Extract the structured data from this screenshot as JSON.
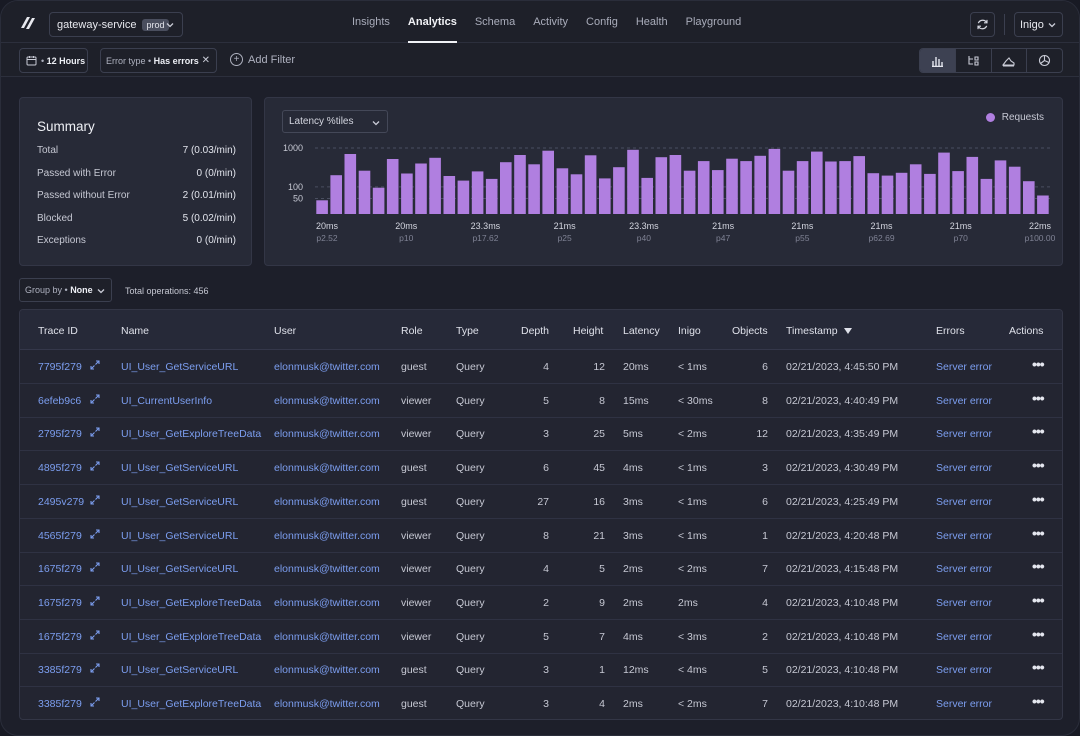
{
  "header": {
    "service_name": "gateway-service",
    "env_badge": "prod",
    "tabs": [
      {
        "label": "Insights"
      },
      {
        "label": "Analytics"
      },
      {
        "label": "Schema"
      },
      {
        "label": "Activity"
      },
      {
        "label": "Config"
      },
      {
        "label": "Health"
      },
      {
        "label": "Playground"
      }
    ],
    "active_tab": "Analytics",
    "org": "Inigo"
  },
  "filters": {
    "time_range": "12 Hours",
    "error_type_label": "Error type",
    "error_type_value": "Has errors",
    "add_filter": "Add Filter"
  },
  "summary": {
    "title": "Summary",
    "rows": [
      {
        "label": "Total",
        "value": "7 (0.03/min)"
      },
      {
        "label": "Passed with Error",
        "value": "0 (0/min)"
      },
      {
        "label": "Passed without Error",
        "value": "2 (0.01/min)"
      },
      {
        "label": "Blocked",
        "value": "5 (0.02/min)"
      },
      {
        "label": "Exceptions",
        "value": "0 (0/min)"
      }
    ]
  },
  "latency": {
    "selector": "Latency %tiles",
    "legend": "Requests",
    "color": "#b07fe0"
  },
  "chart_data": {
    "type": "bar",
    "y_ticks": [
      "1000",
      "100",
      "50"
    ],
    "x_ticks": [
      {
        "value": "20ms",
        "pct": "p2.52"
      },
      {
        "value": "20ms",
        "pct": "p10"
      },
      {
        "value": "23.3ms",
        "pct": "p17.62"
      },
      {
        "value": "21ms",
        "pct": "p25"
      },
      {
        "value": "23.3ms",
        "pct": "p40"
      },
      {
        "value": "21ms",
        "pct": "p47"
      },
      {
        "value": "21ms",
        "pct": "p55"
      },
      {
        "value": "21ms",
        "pct": "p62.69"
      },
      {
        "value": "21ms",
        "pct": "p70"
      },
      {
        "value": "22ms",
        "pct": "p100.00"
      }
    ],
    "values": [
      45,
      200,
      700,
      260,
      95,
      520,
      220,
      400,
      560,
      190,
      145,
      250,
      160,
      430,
      660,
      380,
      850,
      300,
      210,
      650,
      165,
      320,
      900,
      170,
      580,
      660,
      260,
      460,
      270,
      530,
      460,
      630,
      950,
      260,
      460,
      810,
      450,
      460,
      620,
      225,
      195,
      230,
      380,
      215,
      760,
      255,
      590,
      160,
      480,
      330,
      140,
      60
    ]
  },
  "toolbar": {
    "group_by_label": "Group by",
    "group_by_value": "None",
    "total_operations": "Total operations: 456"
  },
  "table": {
    "headers": [
      "Trace ID",
      "Name",
      "User",
      "Role",
      "Type",
      "Depth",
      "Height",
      "Latency",
      "Inigo",
      "Objects",
      "Timestamp",
      "Errors",
      "Actions"
    ],
    "rows": [
      {
        "id": "7795f279",
        "name": "UI_User_GetServiceURL",
        "user": "elonmusk@twitter.com",
        "role": "guest",
        "type": "Query",
        "depth": "4",
        "height": "12",
        "latency": "20ms",
        "inigo": "< 1ms",
        "objects": "6",
        "ts": "02/21/2023, 4:45:50 PM",
        "error": "Server error"
      },
      {
        "id": "6efeb9c6",
        "name": "UI_CurrentUserInfo",
        "user": "elonmusk@twitter.com",
        "role": "viewer",
        "type": "Query",
        "depth": "5",
        "height": "8",
        "latency": "15ms",
        "inigo": "< 30ms",
        "objects": "8",
        "ts": "02/21/2023, 4:40:49 PM",
        "error": "Server error"
      },
      {
        "id": "2795f279",
        "name": "UI_User_GetExploreTreeData",
        "user": "elonmusk@twitter.com",
        "role": "viewer",
        "type": "Query",
        "depth": "3",
        "height": "25",
        "latency": "5ms",
        "inigo": "< 2ms",
        "objects": "12",
        "ts": "02/21/2023, 4:35:49 PM",
        "error": "Server error"
      },
      {
        "id": "4895f279",
        "name": "UI_User_GetServiceURL",
        "user": "elonmusk@twitter.com",
        "role": "guest",
        "type": "Query",
        "depth": "6",
        "height": "45",
        "latency": "4ms",
        "inigo": "< 1ms",
        "objects": "3",
        "ts": "02/21/2023, 4:30:49 PM",
        "error": "Server error"
      },
      {
        "id": "2495v279",
        "name": "UI_User_GetServiceURL",
        "user": "elonmusk@twitter.com",
        "role": "guest",
        "type": "Query",
        "depth": "27",
        "height": "16",
        "latency": "3ms",
        "inigo": "< 1ms",
        "objects": "6",
        "ts": "02/21/2023, 4:25:49 PM",
        "error": "Server error"
      },
      {
        "id": "4565f279",
        "name": "UI_User_GetServiceURL",
        "user": "elonmusk@twitter.com",
        "role": "viewer",
        "type": "Query",
        "depth": "8",
        "height": "21",
        "latency": "3ms",
        "inigo": "< 1ms",
        "objects": "1",
        "ts": "02/21/2023, 4:20:48 PM",
        "error": "Server error"
      },
      {
        "id": "1675f279",
        "name": "UI_User_GetServiceURL",
        "user": "elonmusk@twitter.com",
        "role": "viewer",
        "type": "Query",
        "depth": "4",
        "height": "5",
        "latency": "2ms",
        "inigo": "< 2ms",
        "objects": "7",
        "ts": "02/21/2023, 4:15:48 PM",
        "error": "Server error"
      },
      {
        "id": "1675f279",
        "name": "UI_User_GetExploreTreeData",
        "user": "elonmusk@twitter.com",
        "role": "viewer",
        "type": "Query",
        "depth": "2",
        "height": "9",
        "latency": "2ms",
        "inigo": "2ms",
        "objects": "4",
        "ts": "02/21/2023, 4:10:48 PM",
        "error": "Server error"
      },
      {
        "id": "1675f279",
        "name": "UI_User_GetExploreTreeData",
        "user": "elonmusk@twitter.com",
        "role": "viewer",
        "type": "Query",
        "depth": "5",
        "height": "7",
        "latency": "4ms",
        "inigo": "< 3ms",
        "objects": "2",
        "ts": "02/21/2023, 4:10:48 PM",
        "error": "Server error"
      },
      {
        "id": "3385f279",
        "name": "UI_User_GetServiceURL",
        "user": "elonmusk@twitter.com",
        "role": "guest",
        "type": "Query",
        "depth": "3",
        "height": "1",
        "latency": "12ms",
        "inigo": "< 4ms",
        "objects": "5",
        "ts": "02/21/2023, 4:10:48 PM",
        "error": "Server error"
      },
      {
        "id": "3385f279",
        "name": "UI_User_GetExploreTreeData",
        "user": "elonmusk@twitter.com",
        "role": "guest",
        "type": "Query",
        "depth": "3",
        "height": "4",
        "latency": "2ms",
        "inigo": "< 2ms",
        "objects": "7",
        "ts": "02/21/2023, 4:10:48 PM",
        "error": "Server error"
      }
    ]
  }
}
